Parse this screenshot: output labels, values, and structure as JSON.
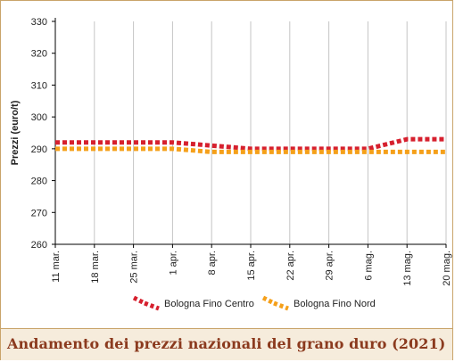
{
  "caption": "Andamento dei prezzi nazionali del grano duro (2021)",
  "chart_data": {
    "type": "line",
    "title": "",
    "xlabel": "",
    "ylabel": "Prezzi (euro/t)",
    "ylim": [
      260,
      330
    ],
    "yticks": [
      260,
      270,
      280,
      290,
      300,
      310,
      320,
      330
    ],
    "categories": [
      "11 mar.",
      "18 mar.",
      "25 mar.",
      "1 apr.",
      "8 apr.",
      "15 apr.",
      "22 apr.",
      "29 apr.",
      "6 mag.",
      "13 mag.",
      "20 mag."
    ],
    "grid": "vertical",
    "legend_position": "bottom",
    "series": [
      {
        "name": "Bologna Fino Centro",
        "color": "#d6202e",
        "values": [
          292,
          292,
          292,
          292,
          291,
          290,
          290,
          290,
          290,
          293,
          293
        ]
      },
      {
        "name": "Bologna Fino Nord",
        "color": "#f5a01a",
        "values": [
          290,
          290,
          290,
          290,
          289,
          289,
          289,
          289,
          289,
          289,
          289
        ]
      }
    ]
  }
}
